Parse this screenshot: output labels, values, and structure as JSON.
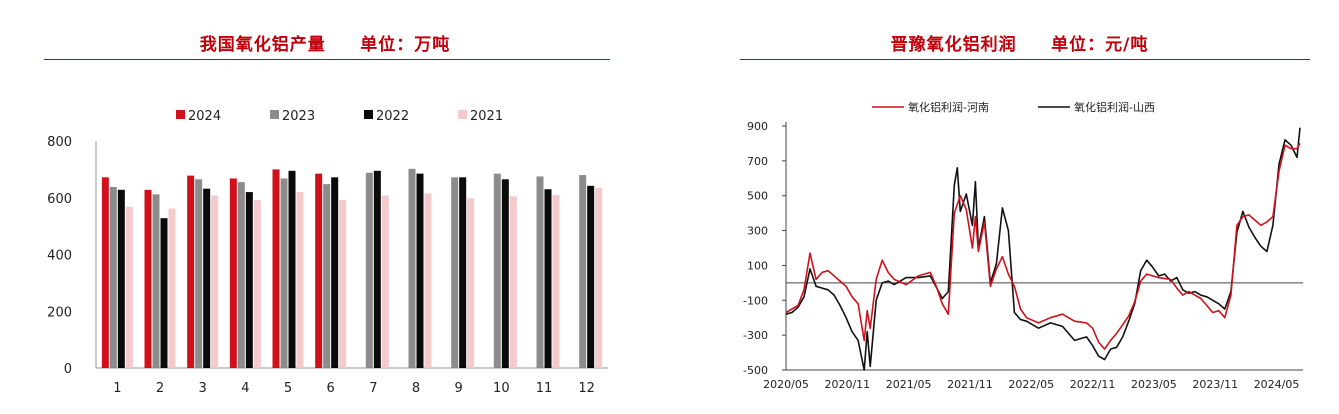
{
  "colors": {
    "y2024": "#d0111b",
    "y2023": "#8c8c8c",
    "y2022": "#0a0a0a",
    "y2021": "#f4c9cb",
    "henan": "#d0111b",
    "shanxi": "#111111",
    "title": "#c0000a"
  },
  "chart_data": [
    {
      "type": "bar",
      "title": "我国氧化铝产量     单位：万吨",
      "categories": [
        "1",
        "2",
        "3",
        "4",
        "5",
        "6",
        "7",
        "8",
        "9",
        "10",
        "11",
        "12"
      ],
      "ylim": [
        0,
        800
      ],
      "yticks": [
        "0",
        "200",
        "400",
        "600",
        "800"
      ],
      "legend_position": "top",
      "grid": false,
      "series": [
        {
          "name": "2024",
          "values": [
            672,
            628,
            678,
            668,
            700,
            685,
            null,
            null,
            null,
            null,
            null,
            null
          ]
        },
        {
          "name": "2023",
          "values": [
            638,
            612,
            665,
            655,
            668,
            648,
            688,
            702,
            672,
            685,
            675,
            680
          ]
        },
        {
          "name": "2022",
          "values": [
            628,
            528,
            632,
            620,
            695,
            672,
            695,
            685,
            672,
            665,
            630,
            642
          ]
        },
        {
          "name": "2021",
          "values": [
            568,
            562,
            608,
            592,
            620,
            592,
            608,
            615,
            598,
            605,
            610,
            635
          ]
        }
      ]
    },
    {
      "type": "line",
      "title": "晋豫氧化铝利润     单位：元/吨",
      "xlabels": [
        "2020/05",
        "2020/11",
        "2021/05",
        "2021/11",
        "2022/05",
        "2022/11",
        "2023/05",
        "2023/11",
        "2024/05"
      ],
      "ylim": [
        -500,
        900
      ],
      "yticks": [
        "900",
        "700",
        "500",
        "300",
        "100",
        "-100",
        "-300",
        "-500"
      ],
      "legend_position": "top",
      "grid": false,
      "series": [
        {
          "name": "氧化铝利润-河南",
          "points": [
            [
              0,
              -170
            ],
            [
              2,
              -130
            ],
            [
              3,
              -40
            ],
            [
              4,
              170
            ],
            [
              5,
              20
            ],
            [
              6,
              60
            ],
            [
              7,
              70
            ],
            [
              9,
              10
            ],
            [
              10,
              -20
            ],
            [
              11,
              -80
            ],
            [
              12,
              -120
            ],
            [
              13,
              -330
            ],
            [
              13.5,
              -160
            ],
            [
              14,
              -260
            ],
            [
              15,
              20
            ],
            [
              16,
              130
            ],
            [
              17,
              60
            ],
            [
              18,
              20
            ],
            [
              20,
              -10
            ],
            [
              22,
              40
            ],
            [
              24,
              60
            ],
            [
              25,
              -20
            ],
            [
              26,
              -120
            ],
            [
              27,
              -180
            ],
            [
              28,
              400
            ],
            [
              29,
              500
            ],
            [
              30,
              420
            ],
            [
              31,
              200
            ],
            [
              31.5,
              380
            ],
            [
              32,
              180
            ],
            [
              33,
              350
            ],
            [
              34,
              -20
            ],
            [
              35,
              80
            ],
            [
              36,
              150
            ],
            [
              37,
              50
            ],
            [
              38,
              -20
            ],
            [
              39,
              -150
            ],
            [
              40,
              -200
            ],
            [
              42,
              -230
            ],
            [
              44,
              -200
            ],
            [
              46,
              -180
            ],
            [
              48,
              -220
            ],
            [
              50,
              -230
            ],
            [
              51,
              -260
            ],
            [
              52,
              -340
            ],
            [
              53,
              -380
            ],
            [
              54,
              -330
            ],
            [
              55,
              -290
            ],
            [
              56,
              -240
            ],
            [
              57,
              -190
            ],
            [
              58,
              -110
            ],
            [
              59,
              10
            ],
            [
              60,
              50
            ],
            [
              62,
              30
            ],
            [
              64,
              20
            ],
            [
              65,
              -30
            ],
            [
              66,
              -70
            ],
            [
              67,
              -50
            ],
            [
              68,
              -70
            ],
            [
              69,
              -90
            ],
            [
              70,
              -130
            ],
            [
              71,
              -170
            ],
            [
              72,
              -160
            ],
            [
              73,
              -200
            ],
            [
              74,
              -70
            ],
            [
              75,
              330
            ],
            [
              76,
              380
            ],
            [
              77,
              390
            ],
            [
              78,
              360
            ],
            [
              79,
              330
            ],
            [
              80,
              350
            ],
            [
              81,
              380
            ],
            [
              82,
              640
            ],
            [
              83,
              790
            ],
            [
              84,
              770
            ],
            [
              85,
              770
            ],
            [
              85.5,
              800
            ]
          ]
        },
        {
          "name": "氧化铝利润-山西",
          "points": [
            [
              0,
              -180
            ],
            [
              1,
              -170
            ],
            [
              2,
              -140
            ],
            [
              3,
              -80
            ],
            [
              4,
              80
            ],
            [
              5,
              -20
            ],
            [
              6,
              -30
            ],
            [
              7,
              -40
            ],
            [
              8,
              -70
            ],
            [
              9,
              -130
            ],
            [
              10,
              -200
            ],
            [
              11,
              -280
            ],
            [
              12,
              -330
            ],
            [
              13,
              -500
            ],
            [
              13.5,
              -280
            ],
            [
              14,
              -480
            ],
            [
              15,
              -100
            ],
            [
              16,
              0
            ],
            [
              17,
              10
            ],
            [
              18,
              -10
            ],
            [
              20,
              30
            ],
            [
              22,
              30
            ],
            [
              24,
              40
            ],
            [
              26,
              -90
            ],
            [
              27,
              -50
            ],
            [
              28,
              560
            ],
            [
              28.5,
              660
            ],
            [
              29,
              410
            ],
            [
              30,
              510
            ],
            [
              31,
              330
            ],
            [
              31.5,
              580
            ],
            [
              32,
              200
            ],
            [
              33,
              380
            ],
            [
              34,
              0
            ],
            [
              35,
              110
            ],
            [
              36,
              430
            ],
            [
              37,
              300
            ],
            [
              38,
              -170
            ],
            [
              39,
              -210
            ],
            [
              40,
              -220
            ],
            [
              42,
              -260
            ],
            [
              44,
              -230
            ],
            [
              46,
              -250
            ],
            [
              48,
              -330
            ],
            [
              50,
              -310
            ],
            [
              51,
              -360
            ],
            [
              52,
              -420
            ],
            [
              53,
              -440
            ],
            [
              54,
              -380
            ],
            [
              55,
              -370
            ],
            [
              56,
              -310
            ],
            [
              57,
              -220
            ],
            [
              58,
              -120
            ],
            [
              59,
              70
            ],
            [
              60,
              130
            ],
            [
              61,
              90
            ],
            [
              62,
              40
            ],
            [
              63,
              50
            ],
            [
              64,
              10
            ],
            [
              65,
              30
            ],
            [
              66,
              -40
            ],
            [
              67,
              -60
            ],
            [
              68,
              -50
            ],
            [
              69,
              -70
            ],
            [
              70,
              -80
            ],
            [
              71,
              -100
            ],
            [
              72,
              -120
            ],
            [
              73,
              -150
            ],
            [
              74,
              -50
            ],
            [
              75,
              290
            ],
            [
              76,
              410
            ],
            [
              77,
              320
            ],
            [
              78,
              260
            ],
            [
              79,
              210
            ],
            [
              80,
              180
            ],
            [
              81,
              330
            ],
            [
              82,
              680
            ],
            [
              83,
              820
            ],
            [
              84,
              790
            ],
            [
              85,
              720
            ],
            [
              85.5,
              890
            ]
          ]
        }
      ]
    }
  ]
}
